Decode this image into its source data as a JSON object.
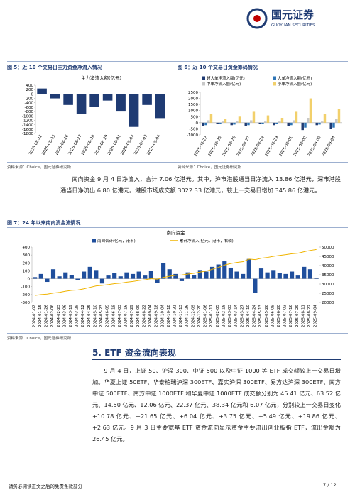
{
  "header": {
    "brand": "国元证券",
    "brand_en": "GUOYUAN SECURITIES"
  },
  "figure_5": {
    "caption": "图 5：近 10 个交易日主力资金净流入情况",
    "source": "资料来源：Choice，国元证券研究所",
    "chart": {
      "type": "bar",
      "title": "主力净流入额(亿元)",
      "color": "#1f3b73",
      "categories": [
        "2025-08-22",
        "2025-08-25",
        "2025-08-26",
        "2025-08-27",
        "2025-08-28",
        "2025-08-29",
        "2025-09-01",
        "2025-09-02",
        "2025-09-03",
        "2025-09-04"
      ],
      "values": [
        250,
        -200,
        -500,
        -900,
        -600,
        -300,
        -800,
        -1500,
        -500,
        -1100
      ],
      "ylim": [
        -1800,
        400
      ],
      "yticks": [
        400,
        200,
        0,
        -200,
        -400,
        -600,
        -800,
        -1000,
        -1200,
        -1400,
        -1600,
        -1800
      ]
    }
  },
  "figure_6": {
    "caption": "图 6：近 10 个交易日资金筹码情况",
    "source": "资料来源：Choice，国元证券研究所",
    "chart": {
      "type": "bar",
      "categories": [
        "2025-08-22",
        "2025-08-25",
        "2025-08-26",
        "2025-08-27",
        "2025-08-28",
        "2025-08-29",
        "2025-09-01",
        "2025-09-02",
        "2025-09-03",
        "2025-09-04"
      ],
      "series": [
        {
          "name": "超大单净流入额(亿元)",
          "color": "#1f3b73",
          "values": [
            -300,
            -100,
            -200,
            -300,
            -100,
            -200,
            -300,
            -600,
            -200,
            -500
          ]
        },
        {
          "name": "大单净流入额(亿元)",
          "color": "#2e75b6",
          "values": [
            -200,
            -100,
            -150,
            -200,
            -100,
            -100,
            -200,
            -400,
            -150,
            -400
          ]
        },
        {
          "name": "中单净流入额(亿元)",
          "color": "#c8c8c8",
          "values": [
            200,
            100,
            150,
            200,
            100,
            100,
            200,
            400,
            100,
            300
          ]
        },
        {
          "name": "小单净流入额(亿元)",
          "color": "#f2d06b",
          "values": [
            700,
            300,
            500,
            900,
            600,
            400,
            900,
            2000,
            700,
            1100
          ]
        }
      ],
      "ylim": [
        -1000,
        2500
      ],
      "yticks": [
        2500,
        2000,
        1500,
        1000,
        500,
        0,
        -500,
        -1000
      ]
    }
  },
  "paragraph_1": "南向资金 9 月 4 日净流入，合计 7.06 亿港元。其中，沪市港股通当日净流入 13.86 亿港元，深市港股通当日净流出 6.80 亿港元。港股市场成交额 3022.33 亿港元，较上一交易日增加 345.86 亿港元。",
  "figure_7": {
    "caption": "图 7：24 年以来南向资金流情况",
    "source": "资料来源：Choice，国元证券研究所",
    "chart": {
      "type": "bar",
      "title": "南向资金",
      "categories": [
        "2024-01-02",
        "2024-01-15",
        "2024-01-26",
        "2024-02-06",
        "2024-02-23",
        "2024-03-06",
        "2024-03-19",
        "2024-03-29",
        "2024-04-12",
        "2024-04-25",
        "2024-05-10",
        "2024-05-23",
        "2024-06-05",
        "2024-06-19",
        "2024-07-03",
        "2024-07-16",
        "2024-07-29",
        "2024-08-09",
        "2024-08-22",
        "2024-09-04",
        "2024-09-18",
        "2024-10-04",
        "2024-10-18",
        "2024-10-31",
        "2024-11-13",
        "2024-11-26",
        "2024-12-09",
        "2024-12-20",
        "2025-01-06",
        "2025-01-17",
        "2025-02-05",
        "2025-02-18",
        "2025-03-03",
        "2025-03-14",
        "2025-03-27",
        "2025-04-10",
        "2025-04-24",
        "2025-05-13",
        "2025-05-26",
        "2025-06-09",
        "2025-06-20",
        "2025-07-03",
        "2025-07-16",
        "2025-07-29",
        "2025-08-11",
        "2025-08-22",
        "2025-09-04"
      ],
      "series": [
        {
          "name": "南向合计(亿元，港币)",
          "color": "#1f4e9c",
          "values": [
            20,
            60,
            -40,
            120,
            30,
            80,
            50,
            -20,
            90,
            150,
            110,
            -60,
            40,
            70,
            30,
            80,
            60,
            90,
            40,
            100,
            -50,
            200,
            120,
            60,
            -30,
            80,
            50,
            110,
            90,
            150,
            180,
            220,
            140,
            90,
            60,
            250,
            -180,
            130,
            80,
            110,
            70,
            60,
            90,
            40,
            150,
            120,
            7
          ]
        },
        {
          "name": "累计净流入(亿元，港币，右轴)",
          "color": "#f0b400",
          "type": "line",
          "axis": "y2",
          "values": [
            23800,
            24300,
            24500,
            25100,
            25500,
            26100,
            26600,
            26800,
            27400,
            28200,
            29000,
            29300,
            29700,
            30200,
            30500,
            31000,
            31400,
            31900,
            32300,
            32900,
            32600,
            33600,
            34200,
            34700,
            34900,
            35400,
            35800,
            36500,
            37000,
            38000,
            39000,
            40300,
            41100,
            41700,
            42100,
            43500,
            43200,
            44000,
            44400,
            45000,
            45500,
            45900,
            46400,
            46700,
            47500,
            48200,
            48700
          ]
        }
      ],
      "ylim": [
        -300,
        400
      ],
      "yticks": [
        400,
        300,
        200,
        100,
        0,
        -100,
        -200,
        -300
      ],
      "y2lim": [
        20000,
        50000
      ],
      "y2ticks": [
        50000,
        45000,
        40000,
        35000,
        30000,
        25000,
        20000
      ]
    }
  },
  "section_heading": "5. ETF 资金流向表现",
  "paragraph_2": "9 月 4 日，上证 50、沪深 300、中证 500 以及中证 1000 等 ETF 成交额较上一交易日增加。华夏上证 50ETF、华泰柏瑞沪深 300ETF、嘉实沪深 300ETF、易方达沪深 300ETF、南方中证 500ETF、南方中证 1000ETF 和华夏中证 1000ETF 成交额分别为 45.41 亿元、63.52 亿元、14.50 亿元、12.06 亿元、22.37 亿元、38.34 亿元和 6.07 亿元，分别较上一交易日变化+10.78 亿元、+21.65 亿元、+6.04 亿元、+3.75 亿元、+5.49 亿元、+19.86 亿元、+2.63 亿元。9 月 3 日主要宽基 ETF 资金流向显示资金主要流出创业板指 ETF，流出金额为 26.45 亿元。",
  "footer": {
    "disclaimer": "请务必阅读正文之后的免责条款部分",
    "page": "7 / 12"
  }
}
